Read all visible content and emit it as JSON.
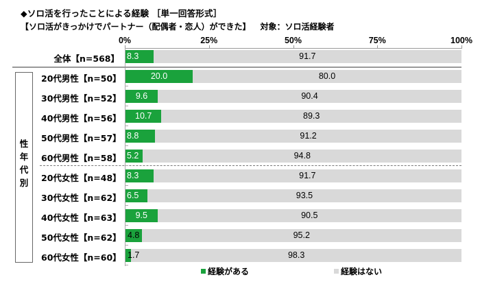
{
  "chart_data": {
    "type": "bar",
    "orientation": "horizontal",
    "stacked": true,
    "normalized_percent": true,
    "title": "◆ソロ活を行ったことによる経験 ［単一回答形式］",
    "subtitle": "【ソロ活がきっかけでパートナー（配偶者・恋人）ができた】",
    "target_note": "対象：ソロ活経験者",
    "xlabel": "",
    "ylabel": "",
    "xlim": [
      0,
      100
    ],
    "x_ticks": [
      "0%",
      "25%",
      "50%",
      "75%",
      "100%"
    ],
    "group_label": "性年代別",
    "categories": [
      "全体【n=568】",
      "20代男性【n=50】",
      "30代男性【n=52】",
      "40代男性【n=56】",
      "50代男性【n=57】",
      "60代男性【n=58】",
      "20代女性【n=48】",
      "30代女性【n=62】",
      "40代女性【n=63】",
      "50代女性【n=62】",
      "60代女性【n=60】"
    ],
    "series": [
      {
        "name": "経験がある",
        "color": "#1aa23c",
        "values": [
          8.3,
          20.0,
          9.6,
          10.7,
          8.8,
          5.2,
          8.3,
          6.5,
          9.5,
          4.8,
          1.7
        ]
      },
      {
        "name": "経験はない",
        "color": "#d9d9d9",
        "values": [
          91.7,
          80.0,
          90.4,
          89.3,
          91.2,
          94.8,
          91.7,
          93.5,
          90.5,
          95.2,
          98.3
        ]
      }
    ],
    "legend_position": "bottom",
    "grid": false
  },
  "header": {
    "title": "◆ソロ活を行ったことによる経験 ［単一回答形式］",
    "subtitle": "【ソロ活がきっかけでパートナー（配偶者・恋人）ができた】",
    "target": "対象：ソロ活経験者"
  },
  "axis": {
    "ticks": [
      "0%",
      "25%",
      "50%",
      "75%",
      "100%"
    ]
  },
  "group": {
    "label_chars": [
      "性",
      "年",
      "代",
      "別"
    ]
  },
  "rows": [
    {
      "label": "全体【n=568】",
      "yes": "8.3",
      "no": "91.7"
    },
    {
      "label": "20代男性【n=50】",
      "yes": "20.0",
      "no": "80.0"
    },
    {
      "label": "30代男性【n=52】",
      "yes": "9.6",
      "no": "90.4"
    },
    {
      "label": "40代男性【n=56】",
      "yes": "10.7",
      "no": "89.3"
    },
    {
      "label": "50代男性【n=57】",
      "yes": "8.8",
      "no": "91.2"
    },
    {
      "label": "60代男性【n=58】",
      "yes": "5.2",
      "no": "94.8"
    },
    {
      "label": "20代女性【n=48】",
      "yes": "8.3",
      "no": "91.7"
    },
    {
      "label": "30代女性【n=62】",
      "yes": "6.5",
      "no": "93.5"
    },
    {
      "label": "40代女性【n=63】",
      "yes": "9.5",
      "no": "90.5"
    },
    {
      "label": "50代女性【n=62】",
      "yes": "4.8",
      "no": "95.2"
    },
    {
      "label": "60代女性【n=60】",
      "yes": "1.7",
      "no": "98.3"
    }
  ],
  "legend": {
    "yes_label": "経験がある",
    "no_label": "経験はない",
    "yes_color": "#1aa23c",
    "no_color": "#d9d9d9"
  }
}
